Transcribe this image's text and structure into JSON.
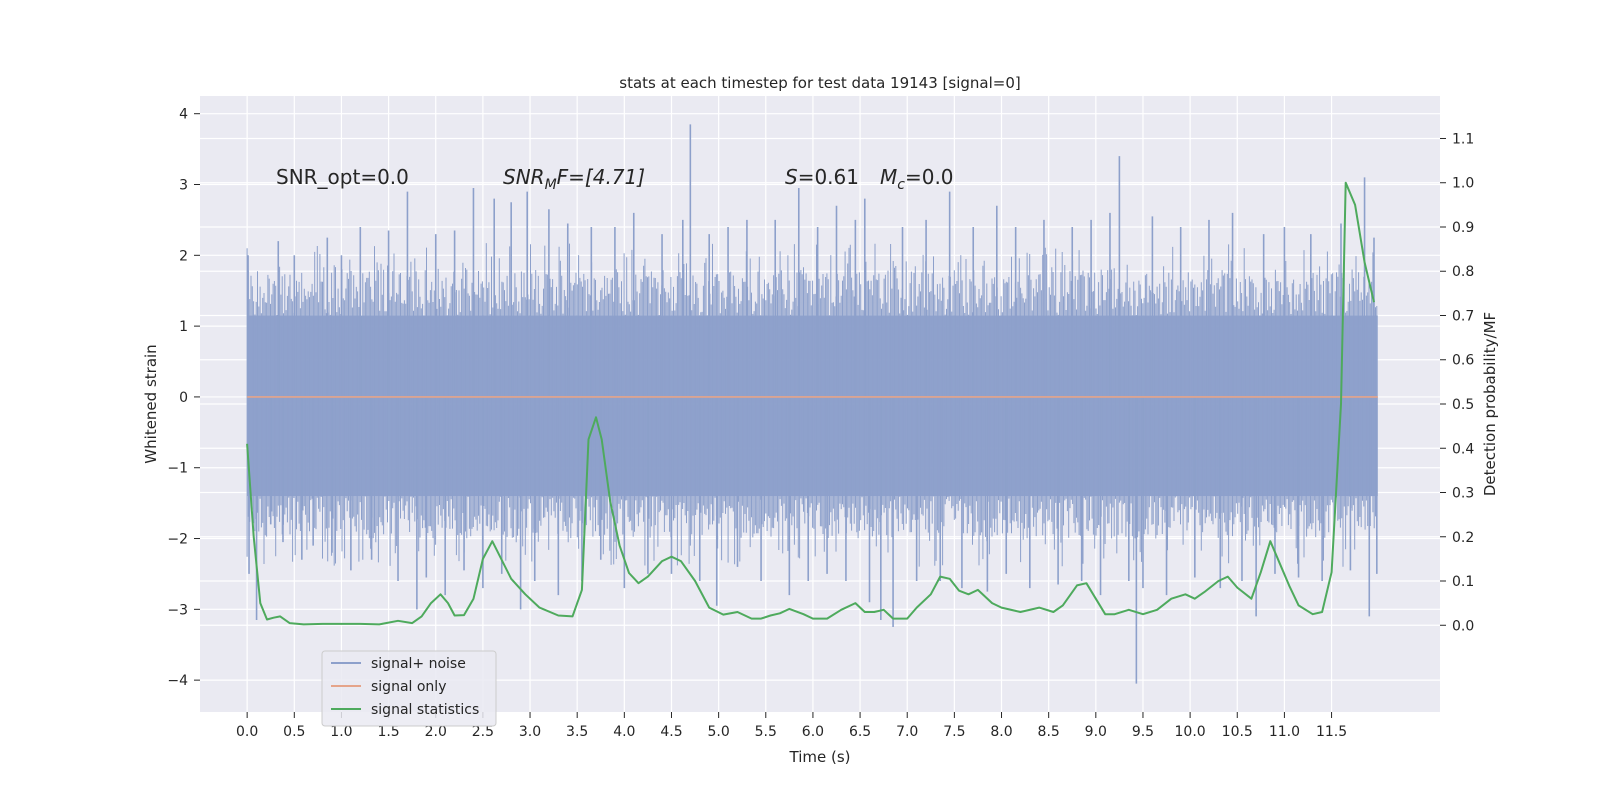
{
  "chart_data": {
    "type": "line",
    "title": "stats at each timestep for test data 19143 [signal=0]",
    "xlabel": "Time (s)",
    "ylabel_left": "Whitened strain",
    "ylabel_right": "Detection probability/MF",
    "xlim": [
      -0.5,
      12.65
    ],
    "ylim_left": [
      -4.45,
      4.25
    ],
    "ylim_right": [
      -0.196,
      1.196
    ],
    "x_ticks": [
      0.0,
      0.5,
      1.0,
      1.5,
      2.0,
      2.5,
      3.0,
      3.5,
      4.0,
      4.5,
      5.0,
      5.5,
      6.0,
      6.5,
      7.0,
      7.5,
      8.0,
      8.5,
      9.0,
      9.5,
      10.0,
      10.5,
      11.0,
      11.5
    ],
    "x_tick_labels": [
      "0.0",
      "0.5",
      "1.0",
      "1.5",
      "2.0",
      "2.5",
      "3.0",
      "3.5",
      "4.0",
      "4.5",
      "5.0",
      "5.5",
      "6.0",
      "6.5",
      "7.0",
      "7.5",
      "8.0",
      "8.5",
      "9.0",
      "9.5",
      "10.0",
      "10.5",
      "11.0",
      "11.5"
    ],
    "y_ticks_left": [
      -4,
      -3,
      -2,
      -1,
      0,
      1,
      2,
      3,
      4
    ],
    "y_tick_labels_left": [
      "−4",
      "−3",
      "−2",
      "−1",
      "0",
      "1",
      "2",
      "3",
      "4"
    ],
    "y_ticks_right": [
      0.0,
      0.1,
      0.2,
      0.3,
      0.4,
      0.5,
      0.6,
      0.7,
      0.8,
      0.9,
      1.0,
      1.1
    ],
    "y_tick_labels_right": [
      "0.0",
      "0.1",
      "0.2",
      "0.3",
      "0.4",
      "0.5",
      "0.6",
      "0.7",
      "0.8",
      "0.9",
      "1.0",
      "1.1"
    ],
    "grid": true,
    "legend_position": "lower-left",
    "annotations": {
      "snr_opt": "SNR_opt=0.0",
      "snr_mf_main": "SNR",
      "snr_mf_sub": "M",
      "snr_mf_rest": "F=[4.71]",
      "s_main": "S",
      "s_rest": "=0.61",
      "mc_main": "M",
      "mc_sub": "c",
      "mc_rest": "=0.0"
    },
    "series": [
      {
        "name": "signal+ noise",
        "axis": "left",
        "color": "#8da0cb",
        "x_range": [
          0.0,
          11.99
        ],
        "band_low": -1.4,
        "band_high": 1.15,
        "spikes": [
          [
            0.01,
            2.0
          ],
          [
            0.02,
            -2.5
          ],
          [
            0.1,
            -3.15
          ],
          [
            0.25,
            -1.8
          ],
          [
            0.33,
            2.2
          ],
          [
            0.38,
            -2.05
          ],
          [
            0.5,
            2.0
          ],
          [
            0.58,
            -2.3
          ],
          [
            0.7,
            -2.1
          ],
          [
            0.85,
            2.25
          ],
          [
            0.9,
            -2.2
          ],
          [
            1.0,
            2.0
          ],
          [
            1.1,
            -2.45
          ],
          [
            1.2,
            2.4
          ],
          [
            1.32,
            -2.3
          ],
          [
            1.5,
            2.35
          ],
          [
            1.6,
            -2.6
          ],
          [
            1.7,
            2.9
          ],
          [
            1.8,
            -3.0
          ],
          [
            1.9,
            -2.55
          ],
          [
            2.0,
            2.3
          ],
          [
            2.1,
            -2.8
          ],
          [
            2.2,
            2.35
          ],
          [
            2.3,
            -2.45
          ],
          [
            2.4,
            2.95
          ],
          [
            2.5,
            -2.7
          ],
          [
            2.62,
            2.8
          ],
          [
            2.7,
            -2.5
          ],
          [
            2.8,
            2.75
          ],
          [
            2.9,
            -3.0
          ],
          [
            2.97,
            2.9
          ],
          [
            3.05,
            -2.6
          ],
          [
            3.2,
            2.65
          ],
          [
            3.3,
            -2.8
          ],
          [
            3.4,
            2.45
          ],
          [
            3.55,
            -2.6
          ],
          [
            3.65,
            2.4
          ],
          [
            3.75,
            -2.3
          ],
          [
            3.9,
            2.4
          ],
          [
            4.0,
            -2.7
          ],
          [
            4.1,
            2.6
          ],
          [
            4.25,
            -2.5
          ],
          [
            4.4,
            2.3
          ],
          [
            4.5,
            -2.5
          ],
          [
            4.62,
            2.5
          ],
          [
            4.7,
            3.85
          ],
          [
            4.8,
            -2.6
          ],
          [
            4.9,
            2.3
          ],
          [
            4.98,
            -2.95
          ],
          [
            5.1,
            2.4
          ],
          [
            5.2,
            -2.4
          ],
          [
            5.3,
            2.5
          ],
          [
            5.45,
            -2.6
          ],
          [
            5.6,
            2.5
          ],
          [
            5.75,
            -2.8
          ],
          [
            5.85,
            2.95
          ],
          [
            5.95,
            -2.6
          ],
          [
            6.05,
            2.4
          ],
          [
            6.15,
            -2.5
          ],
          [
            6.25,
            2.7
          ],
          [
            6.35,
            -2.6
          ],
          [
            6.45,
            2.5
          ],
          [
            6.55,
            2.8
          ],
          [
            6.6,
            -2.9
          ],
          [
            6.72,
            -3.15
          ],
          [
            6.85,
            -3.25
          ],
          [
            6.95,
            2.4
          ],
          [
            7.1,
            -2.6
          ],
          [
            7.2,
            2.5
          ],
          [
            7.35,
            -2.6
          ],
          [
            7.45,
            2.9
          ],
          [
            7.58,
            -2.7
          ],
          [
            7.7,
            2.4
          ],
          [
            7.85,
            -2.75
          ],
          [
            7.95,
            2.7
          ],
          [
            8.05,
            -2.5
          ],
          [
            8.15,
            2.4
          ],
          [
            8.3,
            -2.7
          ],
          [
            8.45,
            2.5
          ],
          [
            8.6,
            -2.65
          ],
          [
            8.75,
            2.4
          ],
          [
            8.85,
            -2.6
          ],
          [
            8.95,
            2.5
          ],
          [
            9.05,
            -2.8
          ],
          [
            9.15,
            2.6
          ],
          [
            9.25,
            3.4
          ],
          [
            9.35,
            -2.6
          ],
          [
            9.43,
            -4.05
          ],
          [
            9.5,
            -2.7
          ],
          [
            9.6,
            2.55
          ],
          [
            9.75,
            -2.8
          ],
          [
            9.9,
            2.4
          ],
          [
            10.05,
            -2.55
          ],
          [
            10.2,
            2.5
          ],
          [
            10.32,
            -2.7
          ],
          [
            10.45,
            2.6
          ],
          [
            10.55,
            -2.6
          ],
          [
            10.7,
            -3.1
          ],
          [
            10.78,
            2.3
          ],
          [
            10.9,
            -2.5
          ],
          [
            11.0,
            2.4
          ],
          [
            11.15,
            -2.55
          ],
          [
            11.28,
            2.3
          ],
          [
            11.4,
            -2.6
          ],
          [
            11.6,
            2.45
          ],
          [
            11.7,
            -2.45
          ],
          [
            11.85,
            3.1
          ],
          [
            11.9,
            -3.1
          ],
          [
            11.95,
            2.25
          ],
          [
            11.98,
            -2.5
          ]
        ]
      },
      {
        "name": "signal only",
        "axis": "left",
        "color": "#e5a48a",
        "x": [
          0.0,
          11.99
        ],
        "y": [
          0.0,
          0.0
        ]
      },
      {
        "name": "signal statistics",
        "axis": "right",
        "color": "#4eaa5d",
        "x": [
          0.0,
          0.07,
          0.14,
          0.21,
          0.28,
          0.35,
          0.45,
          0.6,
          0.8,
          1.0,
          1.2,
          1.4,
          1.6,
          1.75,
          1.85,
          1.95,
          2.05,
          2.13,
          2.2,
          2.3,
          2.4,
          2.5,
          2.6,
          2.8,
          2.95,
          3.1,
          3.3,
          3.45,
          3.55,
          3.62,
          3.7,
          3.76,
          3.85,
          3.95,
          4.05,
          4.15,
          4.25,
          4.4,
          4.5,
          4.6,
          4.75,
          4.9,
          5.05,
          5.2,
          5.35,
          5.45,
          5.55,
          5.65,
          5.75,
          5.9,
          6.0,
          6.15,
          6.3,
          6.45,
          6.55,
          6.65,
          6.75,
          6.85,
          7.0,
          7.1,
          7.25,
          7.35,
          7.45,
          7.55,
          7.65,
          7.75,
          7.9,
          8.0,
          8.2,
          8.4,
          8.55,
          8.65,
          8.8,
          8.9,
          9.0,
          9.1,
          9.2,
          9.35,
          9.5,
          9.65,
          9.8,
          9.95,
          10.05,
          10.15,
          10.3,
          10.4,
          10.5,
          10.65,
          10.75,
          10.85,
          10.95,
          11.05,
          11.15,
          11.3,
          11.4,
          11.5,
          11.6,
          11.65,
          11.75,
          11.85,
          11.95
        ],
        "y": [
          0.41,
          0.2,
          0.05,
          0.013,
          0.017,
          0.02,
          0.005,
          0.002,
          0.003,
          0.003,
          0.003,
          0.002,
          0.01,
          0.005,
          0.02,
          0.05,
          0.07,
          0.05,
          0.022,
          0.023,
          0.06,
          0.15,
          0.19,
          0.105,
          0.07,
          0.04,
          0.022,
          0.02,
          0.08,
          0.42,
          0.47,
          0.42,
          0.28,
          0.18,
          0.118,
          0.095,
          0.11,
          0.145,
          0.155,
          0.145,
          0.1,
          0.04,
          0.024,
          0.03,
          0.015,
          0.015,
          0.022,
          0.027,
          0.037,
          0.025,
          0.015,
          0.015,
          0.035,
          0.05,
          0.03,
          0.03,
          0.035,
          0.015,
          0.015,
          0.04,
          0.07,
          0.11,
          0.105,
          0.078,
          0.07,
          0.08,
          0.05,
          0.04,
          0.03,
          0.04,
          0.03,
          0.045,
          0.09,
          0.095,
          0.06,
          0.025,
          0.025,
          0.035,
          0.025,
          0.035,
          0.06,
          0.07,
          0.06,
          0.075,
          0.1,
          0.11,
          0.085,
          0.06,
          0.12,
          0.19,
          0.14,
          0.09,
          0.045,
          0.025,
          0.03,
          0.12,
          0.5,
          1.0,
          0.95,
          0.82,
          0.73
        ]
      }
    ]
  }
}
